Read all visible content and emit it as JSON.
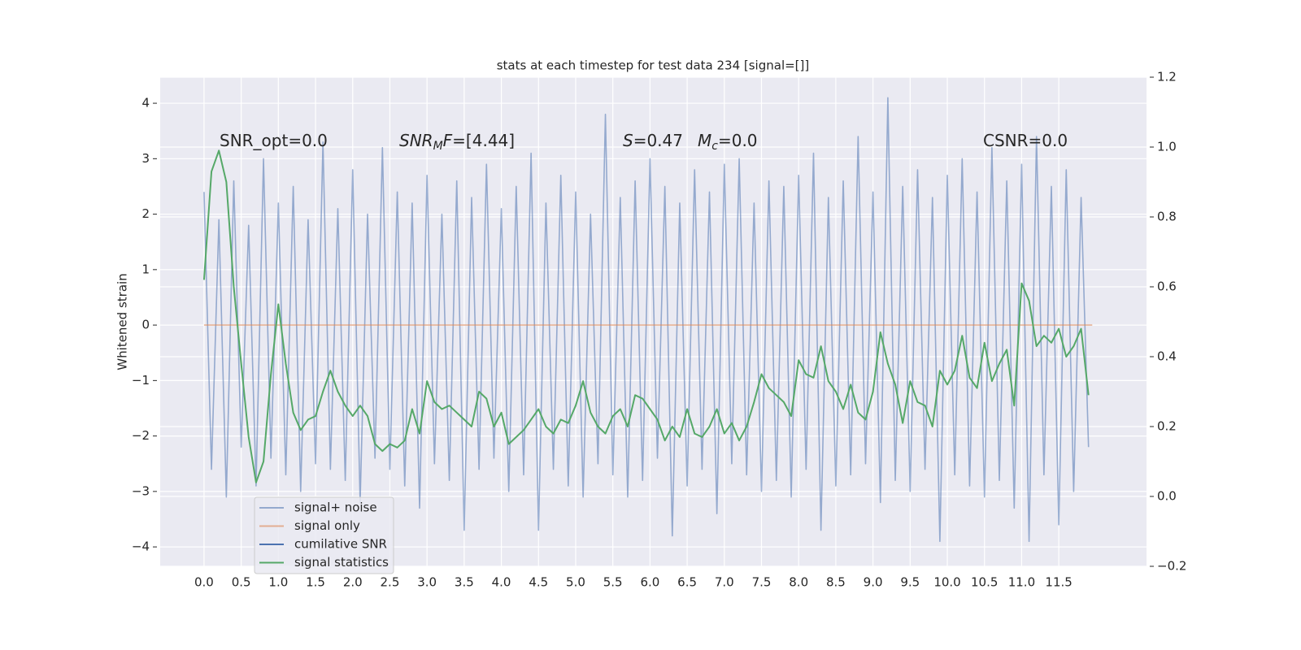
{
  "chart_data": {
    "type": "line",
    "title": "stats at each timestep for test data 234 [signal=[]]",
    "y_label": "Whitened strain",
    "xlim": [
      -0.59,
      12.68
    ],
    "ylim": [
      -4.35,
      4.47
    ],
    "y2lim": [
      -0.2,
      1.2
    ],
    "xticks": [
      {
        "value": 0,
        "label": "0.0"
      },
      0.5,
      {
        "value": 1,
        "label": "1.0"
      },
      1.5,
      {
        "value": 2,
        "label": "2.0"
      },
      2.5,
      {
        "value": 3,
        "label": "3.0"
      },
      3.5,
      {
        "value": 4,
        "label": "4.0"
      },
      4.5,
      {
        "value": 5,
        "label": "5.0"
      },
      5.5,
      {
        "value": 6,
        "label": "6.0"
      },
      6.5,
      {
        "value": 7,
        "label": "7.0"
      },
      7.5,
      {
        "value": 8,
        "label": "8.0"
      },
      8.5,
      {
        "value": 9,
        "label": "9.0"
      },
      9.5,
      {
        "value": 10,
        "label": "10.0"
      },
      10.5,
      {
        "value": 11,
        "label": "11.0"
      },
      11.5
    ],
    "yticks": [
      {
        "value": -4,
        "label": "−4"
      },
      {
        "value": -3,
        "label": "−3"
      },
      {
        "value": -2,
        "label": "−2"
      },
      {
        "value": -1,
        "label": "−1"
      },
      0,
      1,
      2,
      3,
      4
    ],
    "y2ticks": [
      {
        "value": -0.2,
        "label": "−0.2"
      },
      {
        "value": 0,
        "label": "0.0"
      },
      0.2,
      0.4,
      0.6,
      0.8,
      {
        "value": 1,
        "label": "1.0"
      },
      1.2
    ],
    "grid": true,
    "legend": "lower left",
    "x": [
      0.0,
      0.1,
      0.2,
      0.3,
      0.4,
      0.5,
      0.6,
      0.7,
      0.8,
      0.9,
      1.0,
      1.1,
      1.2,
      1.3,
      1.4,
      1.5,
      1.6,
      1.7,
      1.8,
      1.9,
      2.0,
      2.1,
      2.2,
      2.3,
      2.4,
      2.5,
      2.6,
      2.7,
      2.8,
      2.9,
      3.0,
      3.1,
      3.2,
      3.3,
      3.4,
      3.5,
      3.6,
      3.7,
      3.8,
      3.9,
      4.0,
      4.1,
      4.2,
      4.3,
      4.4,
      4.5,
      4.6,
      4.7,
      4.8,
      4.9,
      5.0,
      5.1,
      5.2,
      5.3,
      5.4,
      5.5,
      5.6,
      5.7,
      5.8,
      5.9,
      6.0,
      6.1,
      6.2,
      6.3,
      6.4,
      6.5,
      6.6,
      6.7,
      6.8,
      6.9,
      7.0,
      7.1,
      7.2,
      7.3,
      7.4,
      7.5,
      7.6,
      7.7,
      7.8,
      7.9,
      8.0,
      8.1,
      8.2,
      8.3,
      8.4,
      8.5,
      8.6,
      8.7,
      8.8,
      8.9,
      9.0,
      9.1,
      9.2,
      9.3,
      9.4,
      9.5,
      9.6,
      9.7,
      9.8,
      9.9,
      10.0,
      10.1,
      10.2,
      10.3,
      10.4,
      10.5,
      10.6,
      10.7,
      10.8,
      10.9,
      11.0,
      11.1,
      11.2,
      11.3,
      11.4,
      11.5,
      11.6,
      11.7,
      11.8,
      11.9
    ],
    "series": [
      {
        "name": "signal+ noise",
        "color": "#4c72b0",
        "values": [
          2.4,
          -2.6,
          1.9,
          -3.1,
          2.6,
          -2.2,
          1.8,
          -2.9,
          3.0,
          -2.4,
          2.2,
          -2.7,
          2.5,
          -3.0,
          1.9,
          -2.5,
          3.3,
          -2.6,
          2.1,
          -2.8,
          2.8,
          -3.2,
          2.0,
          -2.4,
          3.2,
          -2.6,
          2.4,
          -2.9,
          2.2,
          -3.3,
          2.7,
          -2.5,
          2.0,
          -2.8,
          2.6,
          -3.7,
          2.3,
          -2.6,
          2.9,
          -2.4,
          2.1,
          -3.0,
          2.5,
          -2.7,
          3.1,
          -3.7,
          2.2,
          -2.6,
          2.7,
          -2.9,
          2.4,
          -3.1,
          2.0,
          -2.5,
          3.8,
          -2.7,
          2.3,
          -3.1,
          2.6,
          -2.8,
          3.0,
          -2.4,
          2.5,
          -3.8,
          2.2,
          -2.9,
          2.8,
          -2.6,
          2.4,
          -3.4,
          2.9,
          -2.5,
          3.0,
          -2.7,
          2.2,
          -3.0,
          2.6,
          -2.8,
          2.5,
          -3.1,
          2.7,
          -2.6,
          3.1,
          -3.7,
          2.3,
          -2.9,
          2.6,
          -2.7,
          3.4,
          -2.5,
          2.4,
          -3.2,
          4.1,
          -2.8,
          2.5,
          -3.0,
          2.8,
          -2.6,
          2.3,
          -3.9,
          2.7,
          -2.7,
          3.0,
          -2.9,
          2.4,
          -3.1,
          3.2,
          -2.8,
          2.6,
          -3.3,
          2.9,
          -3.9,
          3.4,
          -2.7,
          2.5,
          -3.6,
          2.8,
          -3.0,
          2.3,
          -2.2
        ]
      },
      {
        "name": "signal only",
        "color": "#dd8452",
        "x": [
          0,
          11.95
        ],
        "values": [
          0,
          0
        ]
      },
      {
        "name": "cumilative SNR",
        "color": "#4c72b0",
        "x": [],
        "values": []
      },
      {
        "name": "signal statistics",
        "color": "#55a868",
        "axis": "y2",
        "values": [
          0.62,
          0.93,
          0.99,
          0.9,
          0.6,
          0.38,
          0.17,
          0.04,
          0.1,
          0.35,
          0.55,
          0.38,
          0.24,
          0.19,
          0.22,
          0.23,
          0.3,
          0.36,
          0.3,
          0.26,
          0.23,
          0.26,
          0.23,
          0.15,
          0.13,
          0.15,
          0.14,
          0.16,
          0.25,
          0.18,
          0.33,
          0.27,
          0.25,
          0.26,
          0.24,
          0.22,
          0.2,
          0.3,
          0.28,
          0.2,
          0.24,
          0.15,
          0.17,
          0.19,
          0.22,
          0.25,
          0.2,
          0.18,
          0.22,
          0.21,
          0.26,
          0.33,
          0.24,
          0.2,
          0.18,
          0.23,
          0.25,
          0.2,
          0.29,
          0.28,
          0.25,
          0.22,
          0.16,
          0.2,
          0.17,
          0.25,
          0.18,
          0.17,
          0.2,
          0.25,
          0.18,
          0.21,
          0.16,
          0.2,
          0.27,
          0.35,
          0.31,
          0.29,
          0.27,
          0.23,
          0.39,
          0.35,
          0.34,
          0.43,
          0.33,
          0.3,
          0.25,
          0.32,
          0.24,
          0.22,
          0.3,
          0.47,
          0.38,
          0.32,
          0.21,
          0.33,
          0.27,
          0.26,
          0.2,
          0.36,
          0.32,
          0.36,
          0.46,
          0.34,
          0.31,
          0.44,
          0.33,
          0.38,
          0.42,
          0.26,
          0.61,
          0.56,
          0.43,
          0.46,
          0.44,
          0.48,
          0.4,
          0.43,
          0.48,
          0.29
        ]
      }
    ],
    "annotations": [
      [
        {
          "text": "SNR_opt=0.0"
        }
      ],
      [
        {
          "text": "SNR",
          "style": "italic"
        },
        {
          "text": "M",
          "style": "italic-sub"
        },
        {
          "text": "F",
          "style": "italic"
        },
        {
          "text": "=[4.44]"
        }
      ],
      [
        {
          "text": "S",
          "style": "italic"
        },
        {
          "text": "=0.47"
        }
      ],
      [
        {
          "text": "M",
          "style": "italic"
        },
        {
          "text": "c",
          "style": "italic-sub"
        },
        {
          "text": "=0.0"
        }
      ],
      [
        {
          "text": "CSNR=0.0"
        }
      ]
    ]
  }
}
